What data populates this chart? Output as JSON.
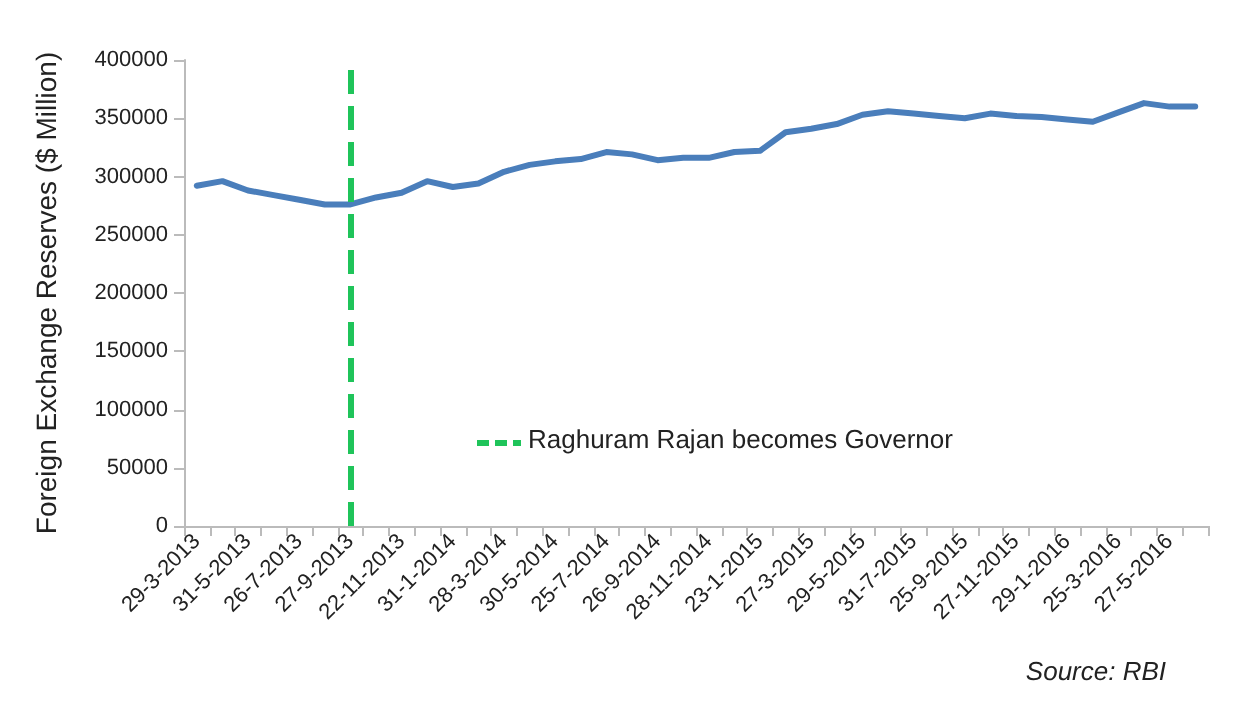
{
  "chart_data": {
    "type": "line",
    "ylabel": "Foreign Exchange Reserves ($ Million)",
    "categories": [
      "29-3-2013",
      null,
      "31-5-2013",
      null,
      "26-7-2013",
      null,
      "27-9-2013",
      null,
      "22-11-2013",
      null,
      "31-1-2014",
      null,
      "28-3-2014",
      null,
      "30-5-2014",
      null,
      "25-7-2014",
      null,
      "26-9-2014",
      null,
      "28-11-2014",
      null,
      "23-1-2015",
      null,
      "27-3-2015",
      null,
      "29-5-2015",
      null,
      "31-7-2015",
      null,
      "25-9-2015",
      null,
      "27-11-2015",
      null,
      "29-1-2016",
      null,
      "25-3-2016",
      null,
      "27-5-2016",
      null
    ],
    "series": [
      {
        "color": "#4a7ebb",
        "values": [
          292000,
          296000,
          288000,
          284000,
          280000,
          276000,
          276000,
          282000,
          286000,
          296000,
          291000,
          294000,
          304000,
          310000,
          313000,
          315000,
          321000,
          319000,
          314000,
          316000,
          316000,
          321000,
          322000,
          338000,
          341000,
          345000,
          353000,
          356000,
          354000,
          352000,
          350000,
          354000,
          352000,
          351000,
          349000,
          347000,
          355000,
          363000,
          360000,
          360000
        ]
      }
    ],
    "ylim": [
      0,
      400000
    ],
    "yticks": [
      0,
      50000,
      100000,
      150000,
      200000,
      250000,
      300000,
      350000,
      400000
    ],
    "ref_lines": [
      {
        "axis": "x",
        "value": "27-9-2013",
        "color": "#1fc45a",
        "line_style": "dashed"
      }
    ],
    "annotations": [
      "Raghuram Rajan becomes Governor",
      "Source: RBI"
    ],
    "grid": false,
    "marker": "none",
    "line_style": "solid"
  }
}
